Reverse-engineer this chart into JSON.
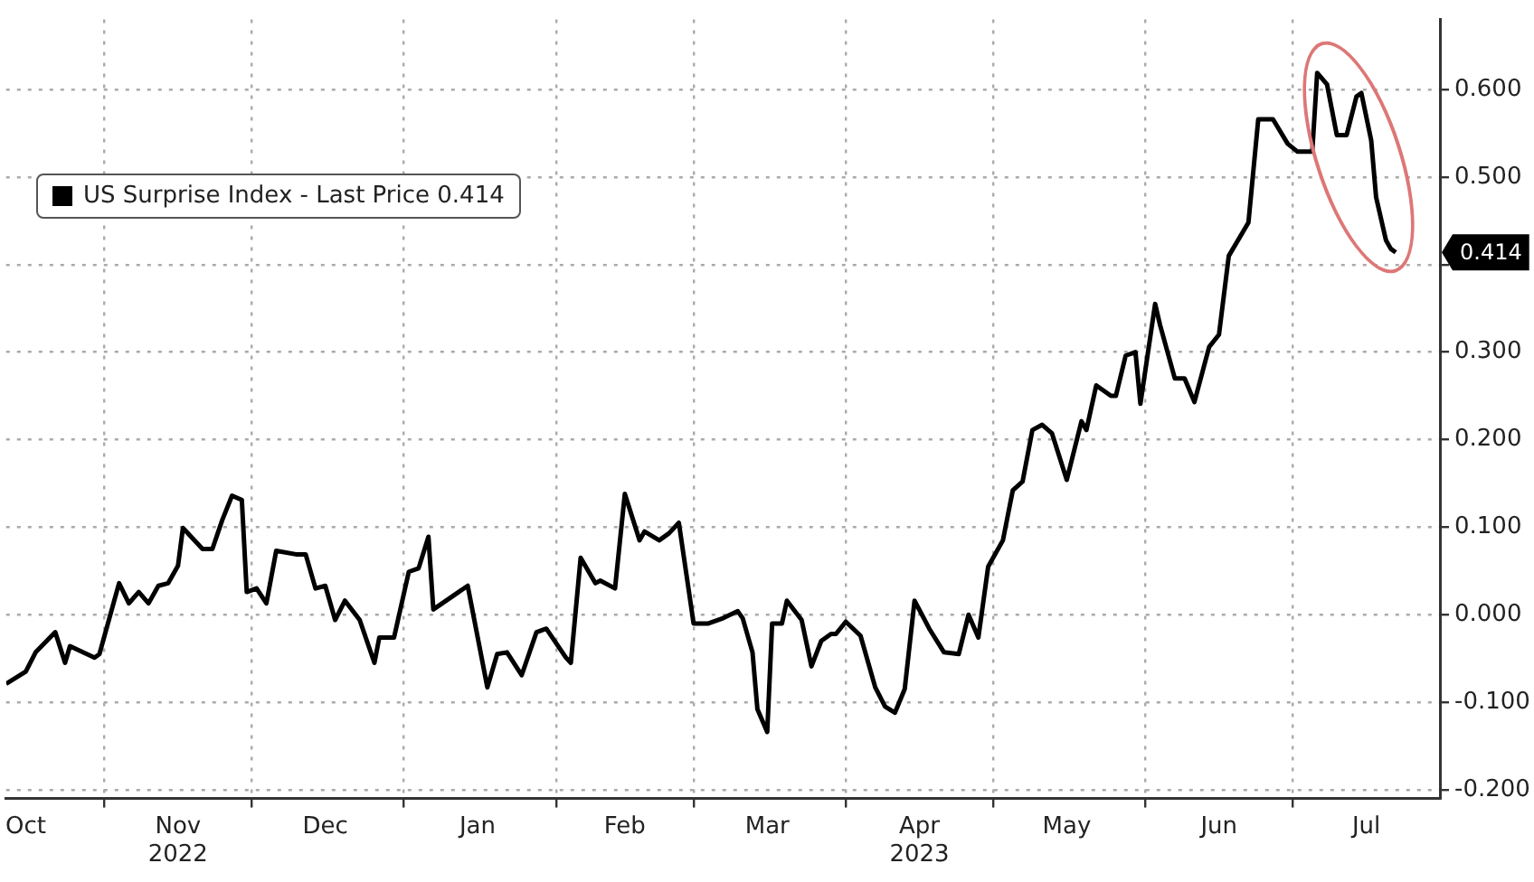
{
  "chart_data": {
    "type": "line",
    "xlim": [
      "2022-10-12",
      "2023-07-31"
    ],
    "ylim": [
      -0.21,
      0.68
    ],
    "xticks": [
      {
        "value": "2022-10-16",
        "label": "Oct"
      },
      {
        "value": "2022-11-01",
        "label": null
      },
      {
        "value": "2022-11-16",
        "label": "Nov\n2022"
      },
      {
        "value": "2022-12-01",
        "label": null
      },
      {
        "value": "2022-12-16",
        "label": "Dec"
      },
      {
        "value": "2023-01-01",
        "label": null
      },
      {
        "value": "2023-01-16",
        "label": "Jan"
      },
      {
        "value": "2023-02-01",
        "label": null
      },
      {
        "value": "2023-02-15",
        "label": "Feb"
      },
      {
        "value": "2023-03-01",
        "label": null
      },
      {
        "value": "2023-03-16",
        "label": "Mar"
      },
      {
        "value": "2023-04-01",
        "label": null
      },
      {
        "value": "2023-04-16",
        "label": "Apr\n2023"
      },
      {
        "value": "2023-05-01",
        "label": null
      },
      {
        "value": "2023-05-16",
        "label": "May"
      },
      {
        "value": "2023-06-01",
        "label": null
      },
      {
        "value": "2023-06-16",
        "label": "Jun"
      },
      {
        "value": "2023-07-01",
        "label": null
      },
      {
        "value": "2023-07-16",
        "label": "Jul"
      }
    ],
    "yticks": [
      {
        "value": -0.2,
        "label": "-0.200"
      },
      {
        "value": -0.1,
        "label": "-0.100"
      },
      {
        "value": 0,
        "label": "0.000"
      },
      {
        "value": 0.1,
        "label": "0.100"
      },
      {
        "value": 0.2,
        "label": "0.200"
      },
      {
        "value": 0.3,
        "label": "0.300"
      },
      {
        "value": 0.4,
        "label": null
      },
      {
        "value": 0.5,
        "label": "0.500"
      },
      {
        "value": 0.6,
        "label": "0.600"
      }
    ],
    "grid": true,
    "legend": "top left",
    "marker": "none",
    "line_style": "solid",
    "annotations": [
      {
        "text": "0.414",
        "x": "2023-07-22",
        "y": 0.414
      }
    ],
    "series": [
      {
        "name": "US Surprise Index - Last Price 0.414",
        "color": "#000000",
        "x": [
          "2022-10-12",
          "2022-10-16",
          "2022-10-18",
          "2022-10-22",
          "2022-10-24",
          "2022-10-25",
          "2022-10-30",
          "2022-10-31",
          "2022-11-04",
          "2022-11-06",
          "2022-11-08",
          "2022-11-10",
          "2022-11-12",
          "2022-11-14",
          "2022-11-16",
          "2022-11-17",
          "2022-11-21",
          "2022-11-23",
          "2022-11-25",
          "2022-11-27",
          "2022-11-29",
          "2022-11-30",
          "2022-12-02",
          "2022-12-04",
          "2022-12-06",
          "2022-12-10",
          "2022-12-12",
          "2022-12-14",
          "2022-12-16",
          "2022-12-18",
          "2022-12-20",
          "2022-12-23",
          "2022-12-26",
          "2022-12-27",
          "2022-12-30",
          "2023-01-02",
          "2023-01-04",
          "2023-01-06",
          "2023-01-07",
          "2023-01-14",
          "2023-01-18",
          "2023-01-20",
          "2023-01-22",
          "2023-01-25",
          "2023-01-28",
          "2023-01-30",
          "2023-02-03",
          "2023-02-04",
          "2023-02-06",
          "2023-02-09",
          "2023-02-10",
          "2023-02-13",
          "2023-02-15",
          "2023-02-18",
          "2023-02-19",
          "2023-02-22",
          "2023-02-24",
          "2023-02-26",
          "2023-03-01",
          "2023-03-04",
          "2023-03-07",
          "2023-03-10",
          "2023-03-11",
          "2023-03-13",
          "2023-03-14",
          "2023-03-16",
          "2023-03-17",
          "2023-03-19",
          "2023-03-20",
          "2023-03-23",
          "2023-03-25",
          "2023-03-27",
          "2023-03-29",
          "2023-03-30",
          "2023-04-01",
          "2023-04-04",
          "2023-04-07",
          "2023-04-09",
          "2023-04-11",
          "2023-04-13",
          "2023-04-15",
          "2023-04-18",
          "2023-04-21",
          "2023-04-24",
          "2023-04-26",
          "2023-04-28",
          "2023-04-30",
          "2023-05-03",
          "2023-05-05",
          "2023-05-07",
          "2023-05-09",
          "2023-05-11",
          "2023-05-13",
          "2023-05-16",
          "2023-05-19",
          "2023-05-20",
          "2023-05-22",
          "2023-05-25",
          "2023-05-26",
          "2023-05-28",
          "2023-05-30",
          "2023-05-31",
          "2023-06-03",
          "2023-06-04",
          "2023-06-07",
          "2023-06-09",
          "2023-06-11",
          "2023-06-14",
          "2023-06-16",
          "2023-06-18",
          "2023-06-22",
          "2023-06-24",
          "2023-06-27",
          "2023-06-30",
          "2023-07-02",
          "2023-07-05",
          "2023-07-06",
          "2023-07-08",
          "2023-07-10",
          "2023-07-12",
          "2023-07-14",
          "2023-07-15",
          "2023-07-17",
          "2023-07-18",
          "2023-07-20",
          "2023-07-21",
          "2023-07-22"
        ],
        "values": [
          -0.079,
          -0.065,
          -0.043,
          -0.02,
          -0.055,
          -0.036,
          -0.049,
          -0.045,
          0.036,
          0.013,
          0.026,
          0.013,
          0.033,
          0.036,
          0.056,
          0.099,
          0.075,
          0.075,
          0.108,
          0.136,
          0.131,
          0.026,
          0.03,
          0.013,
          0.073,
          0.069,
          0.069,
          0.03,
          0.033,
          -0.006,
          0.016,
          -0.006,
          -0.055,
          -0.026,
          -0.026,
          0.049,
          0.053,
          0.089,
          0.006,
          0.033,
          -0.083,
          -0.045,
          -0.043,
          -0.069,
          -0.02,
          -0.016,
          -0.049,
          -0.055,
          0.065,
          0.036,
          0.039,
          0.03,
          0.138,
          0.085,
          0.095,
          0.085,
          0.093,
          0.105,
          -0.01,
          -0.01,
          -0.004,
          0.004,
          -0.004,
          -0.043,
          -0.108,
          -0.134,
          -0.01,
          -0.01,
          0.016,
          -0.006,
          -0.059,
          -0.03,
          -0.022,
          -0.022,
          -0.008,
          -0.024,
          -0.083,
          -0.105,
          -0.112,
          -0.085,
          0.016,
          -0.016,
          -0.043,
          -0.045,
          0,
          -0.026,
          0.055,
          0.085,
          0.142,
          0.152,
          0.211,
          0.217,
          0.207,
          0.154,
          0.221,
          0.211,
          0.262,
          0.25,
          0.25,
          0.296,
          0.3,
          0.241,
          0.355,
          0.331,
          0.27,
          0.27,
          0.243,
          0.306,
          0.32,
          0.41,
          0.448,
          0.566,
          0.566,
          0.538,
          0.529,
          0.529,
          0.619,
          0.606,
          0.548,
          0.548,
          0.592,
          0.596,
          0.542,
          0.477,
          0.428,
          0.418,
          0.414
        ]
      }
    ]
  }
}
